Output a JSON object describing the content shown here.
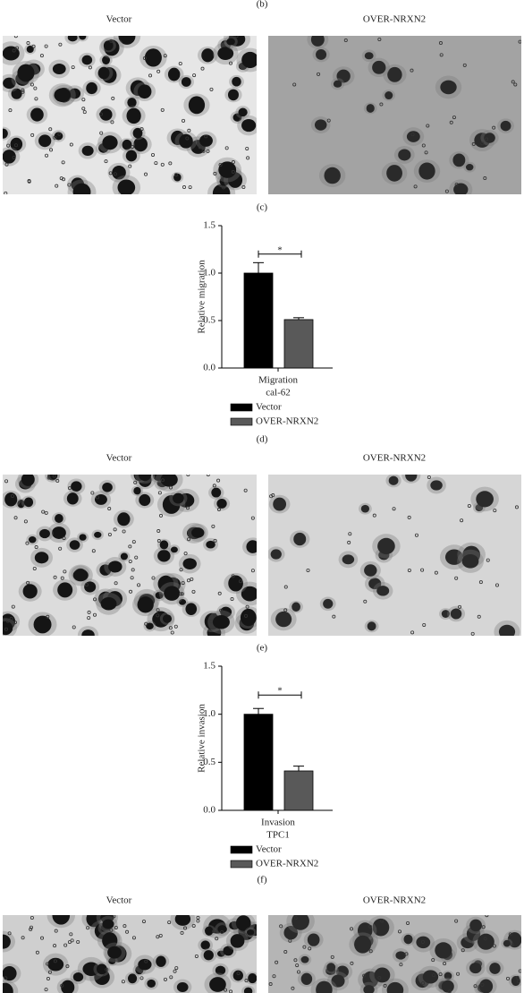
{
  "panel_labels": [
    "(b)",
    "(c)",
    "(d)",
    "(e)",
    "(f)"
  ],
  "image_rows": [
    {
      "left": "Vector",
      "right": "OVER-NRXN2"
    },
    {
      "left": "Vector",
      "right": "OVER-NRXN2"
    },
    {
      "left": "Vector",
      "right": "OVER-NRXN2"
    }
  ],
  "chart_data": [
    {
      "type": "bar",
      "ylabel": "Relative migration",
      "categories": [
        "Migration"
      ],
      "xlabel": "cal-62",
      "series": [
        {
          "name": "Vector",
          "color": "#000000",
          "values": [
            1.0
          ],
          "errors": [
            0.11
          ]
        },
        {
          "name": "OVER-NRXN2",
          "color": "#595959",
          "values": [
            0.51
          ],
          "errors": [
            0.02
          ]
        }
      ],
      "ylim": [
        0,
        1.5
      ],
      "yticks": [
        {
          "value": 0,
          "label": "0.0"
        },
        0.5,
        {
          "value": 1,
          "label": "1.0"
        },
        1.5
      ],
      "annotation": "*"
    },
    {
      "type": "bar",
      "ylabel": "Relative invasion",
      "categories": [
        "Invasion"
      ],
      "xlabel": "TPC1",
      "series": [
        {
          "name": "Vector",
          "color": "#000000",
          "values": [
            1.0
          ],
          "errors": [
            0.06
          ]
        },
        {
          "name": "OVER-NRXN2",
          "color": "#595959",
          "values": [
            0.41
          ],
          "errors": [
            0.05
          ]
        }
      ],
      "ylim": [
        0,
        1.5
      ],
      "yticks": [
        {
          "value": 0,
          "label": "0.0"
        },
        0.5,
        {
          "value": 1,
          "label": "1.0"
        },
        1.5
      ],
      "annotation": "*"
    }
  ]
}
